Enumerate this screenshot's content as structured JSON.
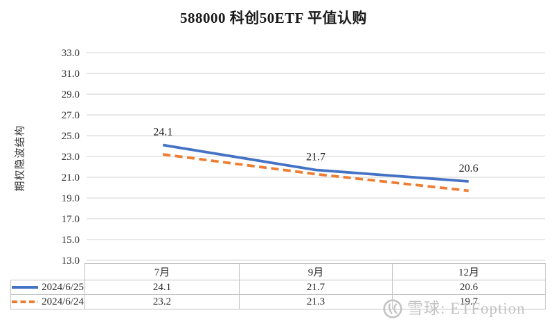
{
  "title": "588000 科创50ETF 平值认购",
  "y_axis_title": "期权隐波结构",
  "watermark": {
    "icon": "xueqiu-logo",
    "text": "雪球: ETFoption"
  },
  "colors": {
    "series1": "#4472C4",
    "series2": "#ED7D31",
    "gridline": "#D9D9D9",
    "table_border": "#BFBFBF",
    "tick_text": "#333333",
    "watermark": "#C3C3C3"
  },
  "chart_data": {
    "type": "line",
    "categories": [
      "7月",
      "9月",
      "12月"
    ],
    "series": [
      {
        "name": "2024/6/25",
        "values": [
          24.1,
          21.7,
          20.6
        ],
        "color": "#4472C4",
        "style": "solid",
        "data_labels": [
          "24.1",
          "21.7",
          "20.6"
        ]
      },
      {
        "name": "2024/6/24",
        "values": [
          23.2,
          21.3,
          19.7
        ],
        "color": "#ED7D31",
        "style": "dashed",
        "data_labels": []
      }
    ],
    "title": "588000 科创50ETF 平值认购",
    "xlabel": "",
    "ylabel": "期权隐波结构",
    "ylim": [
      13.0,
      33.0
    ],
    "ytick_step": 2.0,
    "yticks": [
      "33.0",
      "31.0",
      "29.0",
      "27.0",
      "25.0",
      "23.0",
      "21.0",
      "19.0",
      "17.0",
      "15.0",
      "13.0"
    ],
    "grid": true,
    "legend_position": "table-left",
    "data_table_shown": true
  }
}
